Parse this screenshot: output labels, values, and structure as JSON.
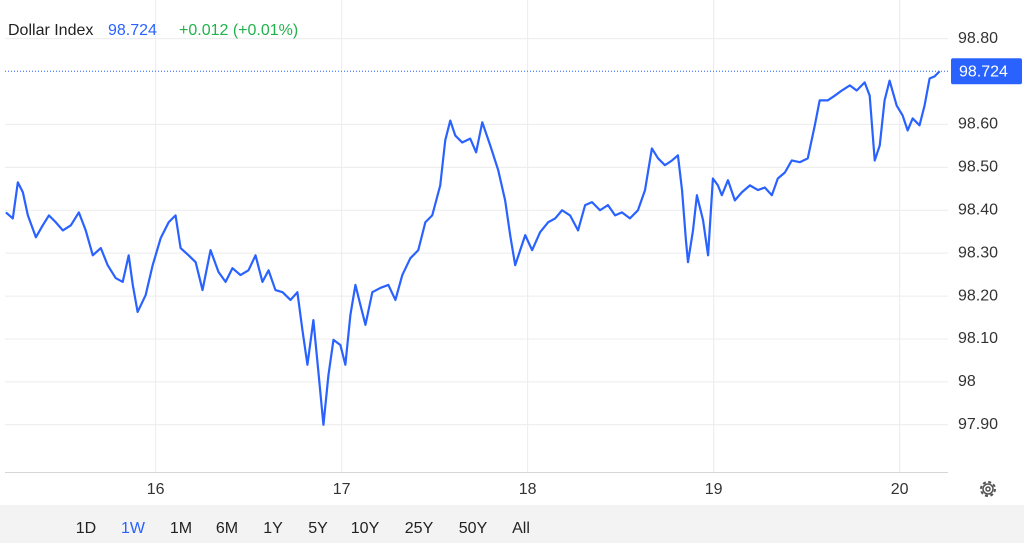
{
  "header": {
    "name": "Dollar Index",
    "change": "+0.012 (+0.01%)"
  },
  "current_value": 98.724,
  "ranges": [
    "1D",
    "1W",
    "1M",
    "6M",
    "1Y",
    "5Y",
    "10Y",
    "25Y",
    "50Y",
    "All"
  ],
  "selected_range": "1W",
  "chart_data": {
    "type": "line",
    "color": "#2962ff",
    "grid": true,
    "xlim": [
      15.19,
      20.26
    ],
    "xticks": [
      16,
      17,
      18,
      19,
      20
    ],
    "ylim": [
      97.79,
      98.89
    ],
    "yticks": [
      {
        "value": 97.9,
        "label": "97.90"
      },
      98,
      {
        "value": 98.1,
        "label": "98.10"
      },
      {
        "value": 98.2,
        "label": "98.20"
      },
      {
        "value": 98.3,
        "label": "98.30"
      },
      {
        "value": 98.4,
        "label": "98.40"
      },
      {
        "value": 98.5,
        "label": "98.50"
      },
      {
        "value": 98.6,
        "label": "98.60"
      },
      {
        "value": 98.8,
        "label": "98.80"
      }
    ],
    "series": [
      {
        "name": "Dollar Index",
        "color": "#2962ff",
        "x": [
          15.195,
          15.232,
          15.259,
          15.286,
          15.313,
          15.356,
          15.393,
          15.426,
          15.463,
          15.501,
          15.544,
          15.587,
          15.624,
          15.662,
          15.705,
          15.742,
          15.785,
          15.823,
          15.855,
          15.877,
          15.903,
          15.946,
          15.984,
          16.027,
          16.07,
          16.107,
          16.134,
          16.177,
          16.215,
          16.252,
          16.295,
          16.338,
          16.376,
          16.413,
          16.456,
          16.499,
          16.537,
          16.574,
          16.607,
          16.644,
          16.682,
          16.725,
          16.762,
          16.789,
          16.816,
          16.848,
          16.875,
          16.902,
          16.929,
          16.956,
          16.993,
          17.02,
          17.047,
          17.074,
          17.101,
          17.128,
          17.165,
          17.208,
          17.251,
          17.289,
          17.326,
          17.369,
          17.412,
          17.45,
          17.487,
          17.53,
          17.557,
          17.584,
          17.611,
          17.648,
          17.691,
          17.723,
          17.756,
          17.799,
          17.842,
          17.879,
          17.906,
          17.933,
          17.96,
          17.987,
          18.024,
          18.067,
          18.11,
          18.148,
          18.185,
          18.228,
          18.271,
          18.309,
          18.346,
          18.389,
          18.432,
          18.47,
          18.507,
          18.55,
          18.593,
          18.631,
          18.668,
          18.701,
          18.738,
          18.776,
          18.808,
          18.83,
          18.851,
          18.862,
          18.889,
          18.91,
          18.943,
          18.97,
          18.996,
          19.023,
          19.044,
          19.077,
          19.114,
          19.152,
          19.195,
          19.238,
          19.275,
          19.313,
          19.345,
          19.383,
          19.42,
          19.463,
          19.506,
          19.544,
          19.57,
          19.613,
          19.651,
          19.689,
          19.732,
          19.769,
          19.812,
          19.839,
          19.866,
          19.893,
          19.919,
          19.946,
          19.984,
          20.016,
          20.043,
          20.07,
          20.107,
          20.134,
          20.161,
          20.188,
          20.215
        ],
        "values": [
          98.395,
          98.381,
          98.465,
          98.442,
          98.388,
          98.337,
          98.365,
          98.388,
          98.372,
          98.353,
          98.365,
          98.395,
          98.353,
          98.295,
          98.312,
          98.272,
          98.242,
          98.233,
          98.295,
          98.226,
          98.163,
          98.202,
          98.272,
          98.335,
          98.372,
          98.388,
          98.312,
          98.295,
          98.279,
          98.214,
          98.307,
          98.256,
          98.233,
          98.265,
          98.249,
          98.26,
          98.295,
          98.233,
          98.26,
          98.214,
          98.209,
          98.191,
          98.209,
          98.121,
          98.04,
          98.144,
          98.023,
          97.9,
          98.016,
          98.098,
          98.086,
          98.04,
          98.156,
          98.226,
          98.179,
          98.133,
          98.209,
          98.219,
          98.226,
          98.191,
          98.249,
          98.288,
          98.307,
          98.372,
          98.388,
          98.458,
          98.563,
          98.609,
          98.574,
          98.558,
          98.567,
          98.535,
          98.605,
          98.551,
          98.493,
          98.423,
          98.342,
          98.272,
          98.307,
          98.342,
          98.307,
          98.349,
          98.372,
          98.381,
          98.4,
          98.388,
          98.353,
          98.412,
          98.419,
          98.4,
          98.412,
          98.388,
          98.395,
          98.381,
          98.4,
          98.447,
          98.544,
          98.521,
          98.505,
          98.516,
          98.528,
          98.447,
          98.33,
          98.279,
          98.353,
          98.435,
          98.377,
          98.295,
          98.474,
          98.458,
          98.435,
          98.47,
          98.423,
          98.442,
          98.458,
          98.447,
          98.453,
          98.435,
          98.474,
          98.488,
          98.516,
          98.512,
          98.521,
          98.598,
          98.656,
          98.656,
          98.667,
          98.679,
          98.691,
          98.679,
          98.698,
          98.667,
          98.516,
          98.551,
          98.656,
          98.702,
          98.644,
          98.621,
          98.586,
          98.614,
          98.598,
          98.644,
          98.707,
          98.712,
          98.724
        ]
      }
    ]
  }
}
